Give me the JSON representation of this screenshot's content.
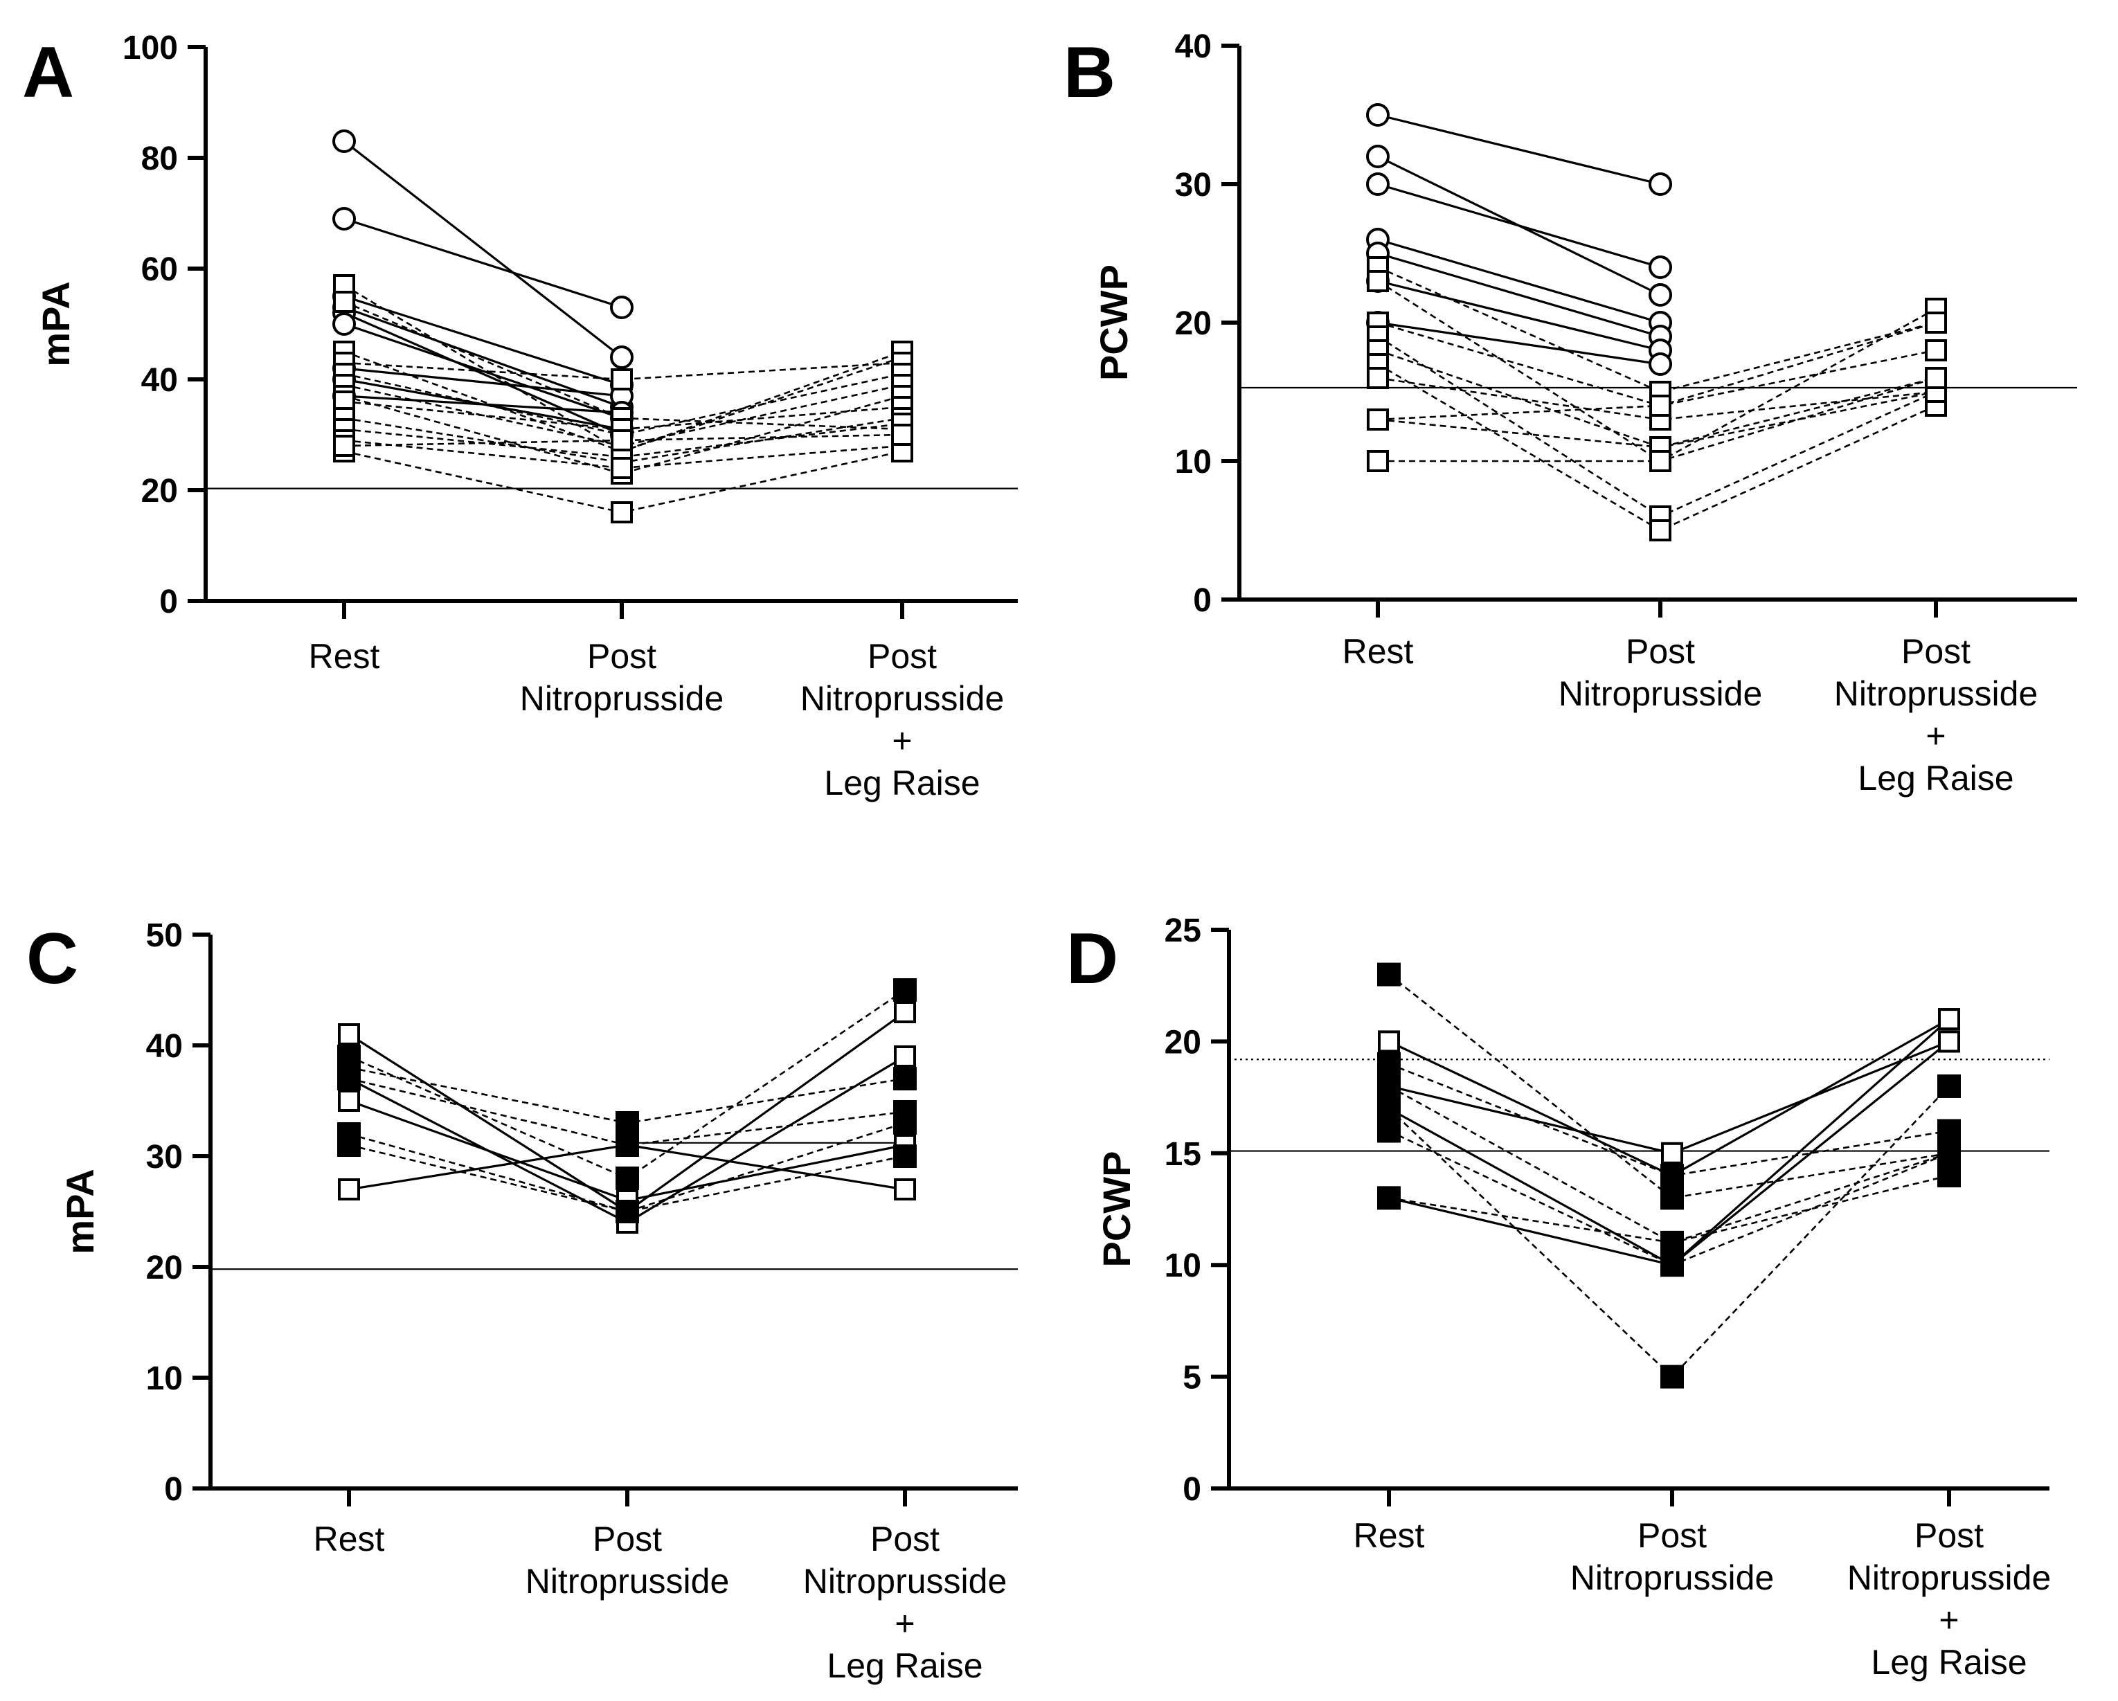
{
  "chart_data": [
    {
      "panel": "A",
      "type": "line",
      "ylabel": "mPA",
      "ylim": [
        0,
        100
      ],
      "yticks": [
        "0",
        "20",
        "40",
        "60",
        "80",
        "100"
      ],
      "categories": [
        [
          "Rest"
        ],
        [
          "Post",
          "Nitroprusside"
        ],
        [
          "Post",
          "Nitroprusside",
          "+",
          "Leg  Raise"
        ]
      ],
      "reference_lines": [
        {
          "y": 20.3,
          "style": "solid"
        }
      ],
      "series": [
        {
          "marker": "circle-open",
          "line": "solid",
          "values": [
            83,
            44,
            null
          ]
        },
        {
          "marker": "circle-open",
          "line": "solid",
          "values": [
            69,
            53,
            null
          ]
        },
        {
          "marker": "circle-open",
          "line": "solid",
          "values": [
            55,
            39,
            null
          ]
        },
        {
          "marker": "circle-open",
          "line": "solid",
          "values": [
            53,
            35,
            null
          ]
        },
        {
          "marker": "circle-open",
          "line": "solid",
          "values": [
            52,
            30,
            null
          ]
        },
        {
          "marker": "circle-open",
          "line": "solid",
          "values": [
            50,
            33,
            null
          ]
        },
        {
          "marker": "circle-open",
          "line": "solid",
          "values": [
            42,
            37,
            null
          ]
        },
        {
          "marker": "circle-open",
          "line": "solid",
          "values": [
            40,
            31,
            null
          ]
        },
        {
          "marker": "circle-open",
          "line": "solid",
          "values": [
            37,
            34,
            null
          ]
        },
        {
          "marker": "square-open",
          "line": "dashed",
          "values": [
            57,
            27,
            44
          ]
        },
        {
          "marker": "square-open",
          "line": "dashed",
          "values": [
            54,
            33,
            31
          ]
        },
        {
          "marker": "square-open",
          "line": "dashed",
          "values": [
            45,
            27,
            45
          ]
        },
        {
          "marker": "square-open",
          "line": "dashed",
          "values": [
            43,
            40,
            43
          ]
        },
        {
          "marker": "square-open",
          "line": "dashed",
          "values": [
            41,
            30,
            41
          ]
        },
        {
          "marker": "square-open",
          "line": "dashed",
          "values": [
            39,
            28,
            39
          ]
        },
        {
          "marker": "square-open",
          "line": "dashed",
          "values": [
            37,
            23,
            37
          ]
        },
        {
          "marker": "square-open",
          "line": "dashed",
          "values": [
            36,
            31,
            35
          ]
        },
        {
          "marker": "square-open",
          "line": "dashed",
          "values": [
            33,
            25,
            33
          ]
        },
        {
          "marker": "square-open",
          "line": "dashed",
          "values": [
            31,
            26,
            32
          ]
        },
        {
          "marker": "square-open",
          "line": "dashed",
          "values": [
            29,
            24,
            28
          ]
        },
        {
          "marker": "square-open",
          "line": "dashed",
          "values": [
            27,
            16,
            27
          ]
        },
        {
          "marker": "square-open",
          "line": "dashed",
          "values": [
            28,
            29,
            30
          ]
        }
      ]
    },
    {
      "panel": "B",
      "type": "line",
      "ylabel": "PCWP",
      "ylim": [
        0,
        40
      ],
      "yticks": [
        "0",
        "10",
        "20",
        "30",
        "40"
      ],
      "categories": [
        [
          "Rest"
        ],
        [
          "Post",
          "Nitroprusside"
        ],
        [
          "Post",
          "Nitroprusside",
          "+",
          "Leg  Raise"
        ]
      ],
      "reference_lines": [
        {
          "y": 15.3,
          "style": "solid"
        }
      ],
      "series": [
        {
          "marker": "circle-open",
          "line": "solid",
          "values": [
            35,
            30,
            null
          ]
        },
        {
          "marker": "circle-open",
          "line": "solid",
          "values": [
            32,
            22,
            null
          ]
        },
        {
          "marker": "circle-open",
          "line": "solid",
          "values": [
            30,
            24,
            null
          ]
        },
        {
          "marker": "circle-open",
          "line": "solid",
          "values": [
            26,
            20,
            null
          ]
        },
        {
          "marker": "circle-open",
          "line": "solid",
          "values": [
            25,
            19,
            null
          ]
        },
        {
          "marker": "circle-open",
          "line": "solid",
          "values": [
            23,
            18,
            null
          ]
        },
        {
          "marker": "circle-open",
          "line": "solid",
          "values": [
            20,
            17,
            null
          ]
        },
        {
          "marker": "square-open",
          "line": "dashed",
          "values": [
            24,
            15,
            20
          ]
        },
        {
          "marker": "square-open",
          "line": "dashed",
          "values": [
            23,
            10,
            21
          ]
        },
        {
          "marker": "square-open",
          "line": "dashed",
          "values": [
            20,
            14,
            18
          ]
        },
        {
          "marker": "square-open",
          "line": "dashed",
          "values": [
            19,
            6,
            15
          ]
        },
        {
          "marker": "square-open",
          "line": "dashed",
          "values": [
            18,
            11,
            16
          ]
        },
        {
          "marker": "square-open",
          "line": "dashed",
          "values": [
            17,
            5,
            14
          ]
        },
        {
          "marker": "square-open",
          "line": "dashed",
          "values": [
            16,
            13,
            15
          ]
        },
        {
          "marker": "square-open",
          "line": "dashed",
          "values": [
            13,
            14,
            20
          ]
        },
        {
          "marker": "square-open",
          "line": "dashed",
          "values": [
            13,
            11,
            15
          ]
        },
        {
          "marker": "square-open",
          "line": "dashed",
          "values": [
            10,
            10,
            16
          ]
        }
      ]
    },
    {
      "panel": "C",
      "type": "line",
      "ylabel": "mPA",
      "ylim": [
        0,
        50
      ],
      "yticks": [
        "0",
        "10",
        "20",
        "30",
        "40",
        "50"
      ],
      "categories": [
        [
          "Rest"
        ],
        [
          "Post",
          "Nitroprusside"
        ],
        [
          "Post",
          "Nitroprusside",
          "+",
          "Leg  Raise"
        ]
      ],
      "reference_lines": [
        {
          "y": 19.8,
          "style": "solid"
        },
        {
          "y": 31.2,
          "style": "solid",
          "from_category": 1
        }
      ],
      "series": [
        {
          "marker": "square-open",
          "line": "solid",
          "values": [
            41,
            25,
            43
          ]
        },
        {
          "marker": "square-open",
          "line": "solid",
          "values": [
            37,
            24,
            39
          ]
        },
        {
          "marker": "square-open",
          "line": "solid",
          "values": [
            35,
            26,
            31
          ]
        },
        {
          "marker": "square-open",
          "line": "solid",
          "values": [
            27,
            31,
            27
          ]
        },
        {
          "marker": "square-filled",
          "line": "dashed",
          "values": [
            39,
            28,
            45
          ]
        },
        {
          "marker": "square-filled",
          "line": "dashed",
          "values": [
            38,
            33,
            37
          ]
        },
        {
          "marker": "square-filled",
          "line": "dashed",
          "values": [
            37,
            31,
            34
          ]
        },
        {
          "marker": "square-filled",
          "line": "dashed",
          "values": [
            32,
            25,
            33
          ]
        },
        {
          "marker": "square-filled",
          "line": "dashed",
          "values": [
            31,
            25,
            30
          ]
        }
      ]
    },
    {
      "panel": "D",
      "type": "line",
      "ylabel": "PCWP",
      "ylim": [
        0,
        25
      ],
      "yticks": [
        "0",
        "5",
        "10",
        "15",
        "20",
        "25"
      ],
      "categories": [
        [
          "Rest"
        ],
        [
          "Post",
          "Nitroprusside"
        ],
        [
          "Post",
          "Nitroprusside",
          "+",
          "Leg  Raise"
        ]
      ],
      "reference_lines": [
        {
          "y": 19.2,
          "style": "dotted"
        },
        {
          "y": 15.1,
          "style": "solid"
        }
      ],
      "series": [
        {
          "marker": "square-open",
          "line": "solid",
          "values": [
            20,
            14,
            21
          ]
        },
        {
          "marker": "square-open",
          "line": "solid",
          "values": [
            18,
            15,
            20
          ]
        },
        {
          "marker": "square-open",
          "line": "solid",
          "values": [
            17,
            10,
            20
          ]
        },
        {
          "marker": "square-open",
          "line": "solid",
          "values": [
            13,
            10,
            21
          ]
        },
        {
          "marker": "square-filled",
          "line": "dashed",
          "values": [
            23,
            13,
            15
          ]
        },
        {
          "marker": "square-filled",
          "line": "dashed",
          "values": [
            19,
            14,
            16
          ]
        },
        {
          "marker": "square-filled",
          "line": "dashed",
          "values": [
            18,
            11,
            14
          ]
        },
        {
          "marker": "square-filled",
          "line": "dashed",
          "values": [
            17,
            5,
            18
          ]
        },
        {
          "marker": "square-filled",
          "line": "dashed",
          "values": [
            16,
            10,
            15
          ]
        },
        {
          "marker": "square-filled",
          "line": "dashed",
          "values": [
            13,
            11,
            15
          ]
        }
      ]
    }
  ]
}
